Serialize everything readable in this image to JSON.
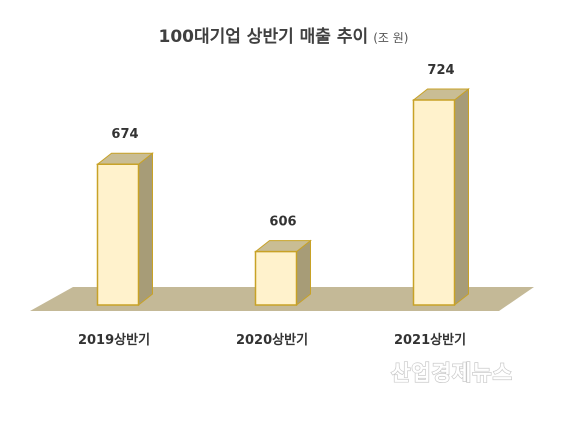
{
  "chart_data": {
    "type": "bar",
    "title": "100대기업 상반기 매출 추이",
    "unit": "(조 원)",
    "categories": [
      "2019상반기",
      "2020상반기",
      "2021상반기"
    ],
    "values": [
      674,
      606,
      724
    ],
    "xlabel": "",
    "ylabel": "",
    "grid": false,
    "legend": "none",
    "colors": {
      "bar_front": "#fff2cc",
      "bar_side": "#a79c77",
      "bar_top": "#c9bd94",
      "bar_edge": "#c8a227",
      "floor": "#c4b997"
    }
  },
  "watermark": "산업경제뉴스"
}
